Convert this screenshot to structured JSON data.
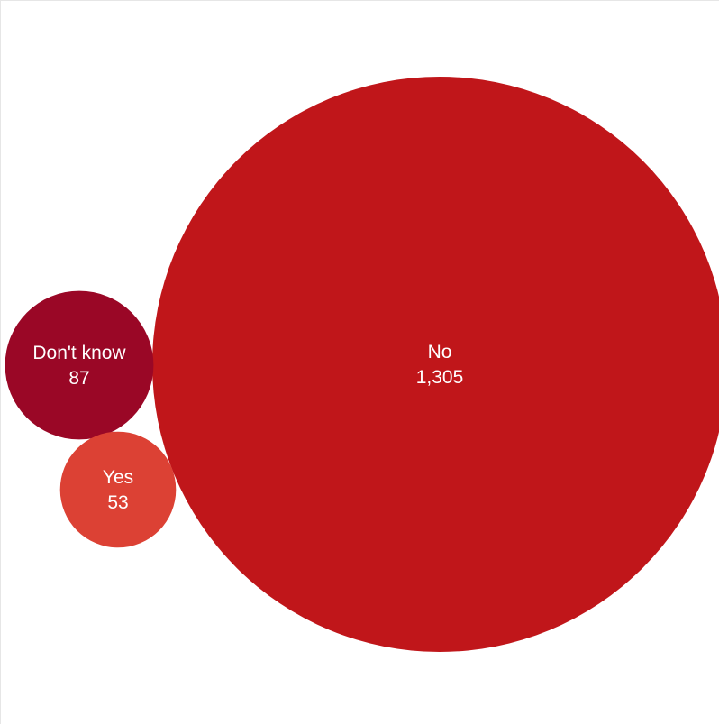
{
  "chart_data": {
    "type": "bubble",
    "title": "",
    "bubbles": [
      {
        "label": "No",
        "value_text": "1,305",
        "value": 1305,
        "color": "#c0161a"
      },
      {
        "label": "Don't know",
        "value_text": "87",
        "value": 87,
        "color": "#9a0726"
      },
      {
        "label": "Yes",
        "value_text": "53",
        "value": 53,
        "color": "#dc4134"
      }
    ],
    "legend": "none",
    "grid": false
  }
}
